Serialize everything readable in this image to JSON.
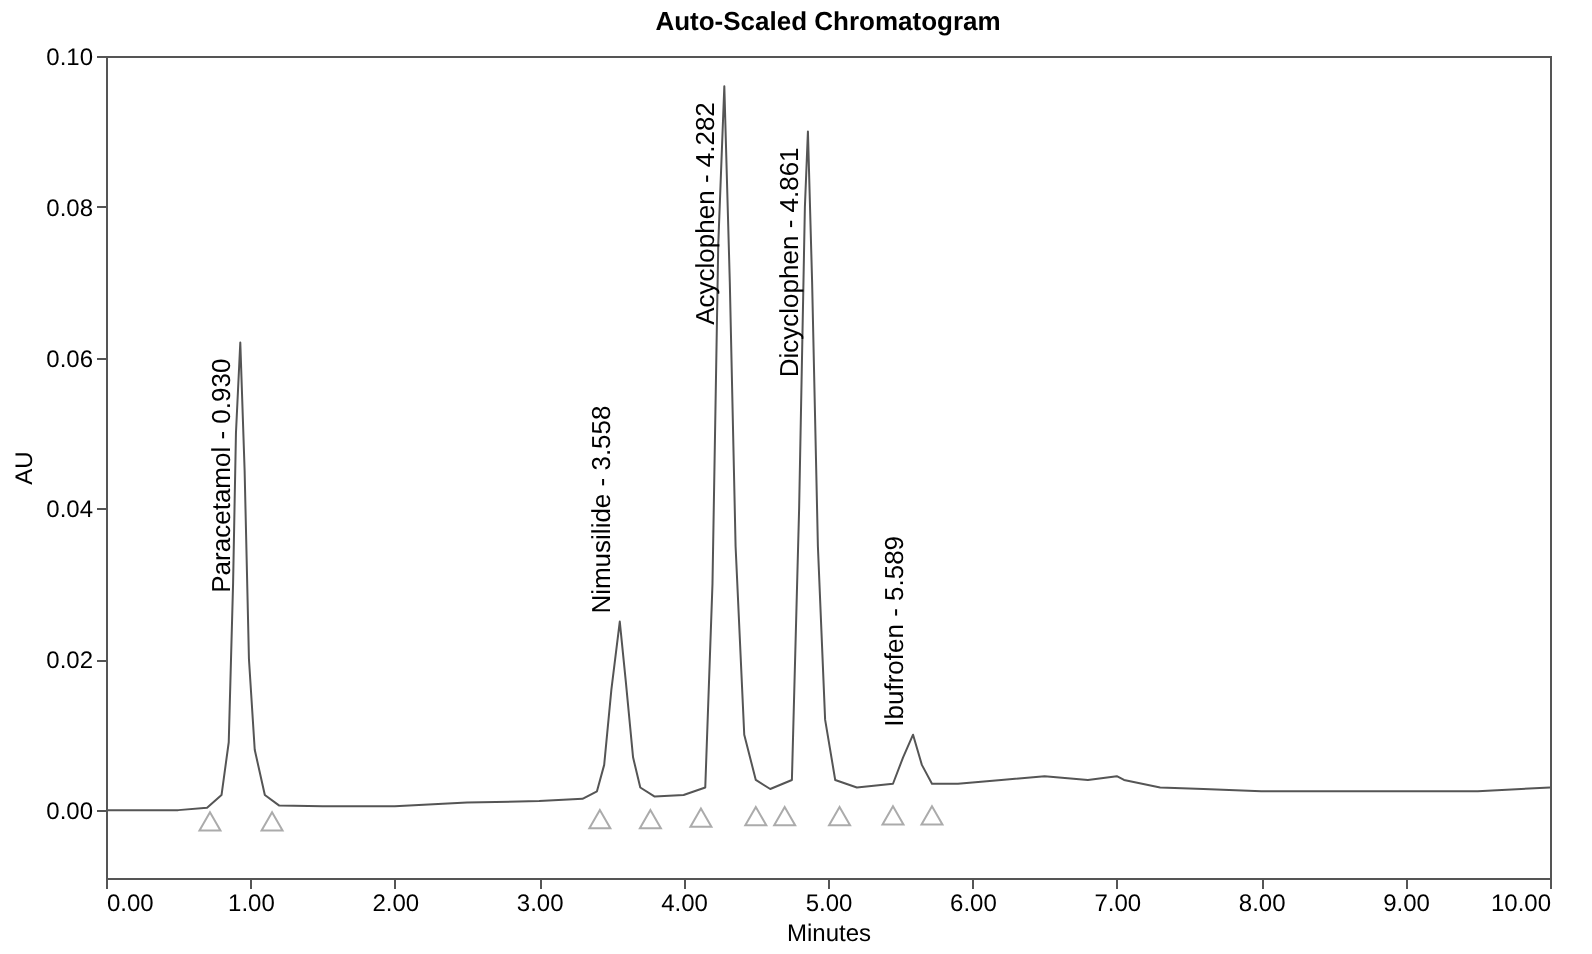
{
  "chart_data": {
    "type": "line",
    "title": "Auto-Scaled Chromatogram",
    "xlabel": "Minutes",
    "ylabel": "AU",
    "xlim": [
      0,
      10
    ],
    "ylim": [
      -0.009,
      0.1
    ],
    "xticks": [
      {
        "value": 0,
        "label": "0.00"
      },
      {
        "value": 1,
        "label": "1.00"
      },
      {
        "value": 2,
        "label": "2.00"
      },
      {
        "value": 3,
        "label": "3.00"
      },
      {
        "value": 4,
        "label": "4.00"
      },
      {
        "value": 5,
        "label": "5.00"
      },
      {
        "value": 6,
        "label": "6.00"
      },
      {
        "value": 7,
        "label": "7.00"
      },
      {
        "value": 8,
        "label": "8.00"
      },
      {
        "value": 9,
        "label": "9.00"
      },
      {
        "value": 10,
        "label": "10.00"
      }
    ],
    "yticks": [
      {
        "value": 0,
        "label": "0.00"
      },
      {
        "value": 0.02,
        "label": "0.02"
      },
      {
        "value": 0.04,
        "label": "0.04"
      },
      {
        "value": 0.06,
        "label": "0.06"
      },
      {
        "value": 0.08,
        "label": "0.08"
      },
      {
        "value": 0.1,
        "label": "0.10"
      }
    ],
    "grid": false,
    "line_style": "solid",
    "series": [
      {
        "type": "line",
        "color": "#555555",
        "marker": "none",
        "x": [
          0,
          0.5,
          0.7,
          0.8,
          0.85,
          0.88,
          0.9,
          0.93,
          0.96,
          0.99,
          1.03,
          1.1,
          1.2,
          1.5,
          2.0,
          2.5,
          3.0,
          3.3,
          3.4,
          3.45,
          3.5,
          3.558,
          3.6,
          3.65,
          3.7,
          3.8,
          4.0,
          4.15,
          4.2,
          4.24,
          4.282,
          4.32,
          4.36,
          4.42,
          4.5,
          4.6,
          4.75,
          4.8,
          4.84,
          4.861,
          4.89,
          4.93,
          4.98,
          5.05,
          5.2,
          5.45,
          5.52,
          5.589,
          5.65,
          5.72,
          5.9,
          6.2,
          6.5,
          6.8,
          7.0,
          7.05,
          7.3,
          7.6,
          8.0,
          8.5,
          9.0,
          9.5,
          10
        ],
        "values": [
          0,
          0,
          0.0003,
          0.002,
          0.009,
          0.03,
          0.05,
          0.062,
          0.045,
          0.02,
          0.008,
          0.002,
          0.0006,
          0.0005,
          0.0005,
          0.001,
          0.0012,
          0.0015,
          0.0025,
          0.006,
          0.016,
          0.025,
          0.017,
          0.007,
          0.003,
          0.0018,
          0.002,
          0.003,
          0.03,
          0.075,
          0.096,
          0.07,
          0.035,
          0.01,
          0.004,
          0.0028,
          0.004,
          0.04,
          0.08,
          0.09,
          0.07,
          0.035,
          0.012,
          0.004,
          0.003,
          0.0035,
          0.007,
          0.01,
          0.006,
          0.0035,
          0.0035,
          0.004,
          0.0045,
          0.004,
          0.0045,
          0.004,
          0.003,
          0.0028,
          0.0025,
          0.0025,
          0.0025,
          0.0025,
          0.003
        ]
      },
      {
        "type": "scatter",
        "color": "#888888",
        "marker": "triangle",
        "x": [
          0.72,
          1.15,
          3.42,
          3.77,
          4.12,
          4.5,
          4.7,
          5.08,
          5.45,
          5.72
        ],
        "values": [
          -0.0015,
          -0.0015,
          -0.0012,
          -0.0012,
          -0.001,
          -0.0008,
          -0.0008,
          -0.0008,
          -0.0007,
          -0.0007
        ]
      }
    ],
    "annotations": [
      {
        "text": "Paracetamol - 0.930",
        "x": 0.93,
        "y": 0.062
      },
      {
        "text": "Nimusilide - 3.558",
        "x": 3.558,
        "y": 0.025
      },
      {
        "text": "Acyclophen - 4.282",
        "x": 4.282,
        "y": 0.096
      },
      {
        "text": "Dicyclophen - 4.861",
        "x": 4.861,
        "y": 0.09
      },
      {
        "text": "Ibufrofen - 5.589",
        "x": 5.589,
        "y": 0.01
      }
    ]
  }
}
